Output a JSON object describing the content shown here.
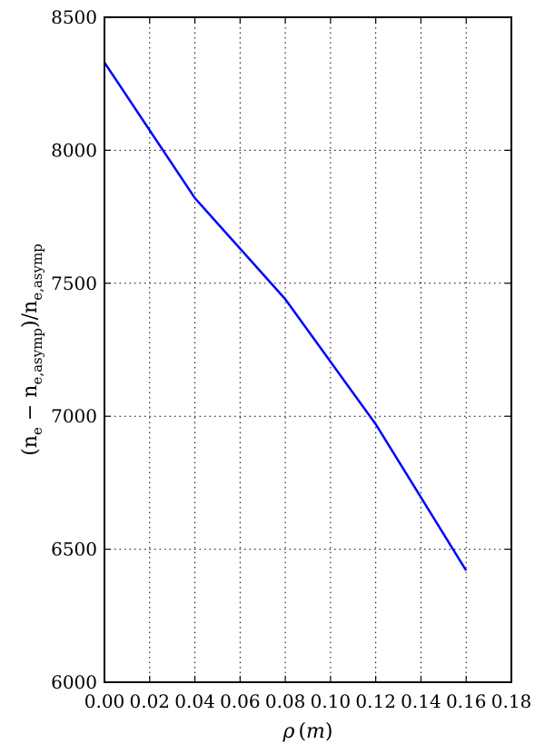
{
  "chart_data": {
    "type": "line",
    "title": "",
    "xlabel_symbol": "ρ",
    "xlabel_unit": "m",
    "ylabel": "(n_e − n_e,asymp)/n_e,asymp",
    "ylabel_parts": {
      "open": "(n",
      "sub1": "e",
      "minus": " − n",
      "sub2": "e,asymp",
      "mid": ")/n",
      "sub3": "e,asymp"
    },
    "xlim": [
      0.0,
      0.18
    ],
    "ylim": [
      6000,
      8500
    ],
    "x_ticks": [
      0.0,
      0.02,
      0.04,
      0.06,
      0.08,
      0.1,
      0.12,
      0.14,
      0.16,
      0.18
    ],
    "x_tick_labels": [
      "0.00",
      "0.02",
      "0.04",
      "0.06",
      "0.08",
      "0.10",
      "0.12",
      "0.14",
      "0.16",
      "0.18"
    ],
    "y_ticks": [
      6000,
      6500,
      7000,
      7500,
      8000,
      8500
    ],
    "y_tick_labels": [
      "6000",
      "6500",
      "7000",
      "7500",
      "8000",
      "8500"
    ],
    "grid": true,
    "series": [
      {
        "color": "#0000ff",
        "x": [
          0.0,
          0.04,
          0.08,
          0.12,
          0.16
        ],
        "y": [
          8330,
          7820,
          7440,
          6970,
          6420
        ]
      }
    ]
  }
}
